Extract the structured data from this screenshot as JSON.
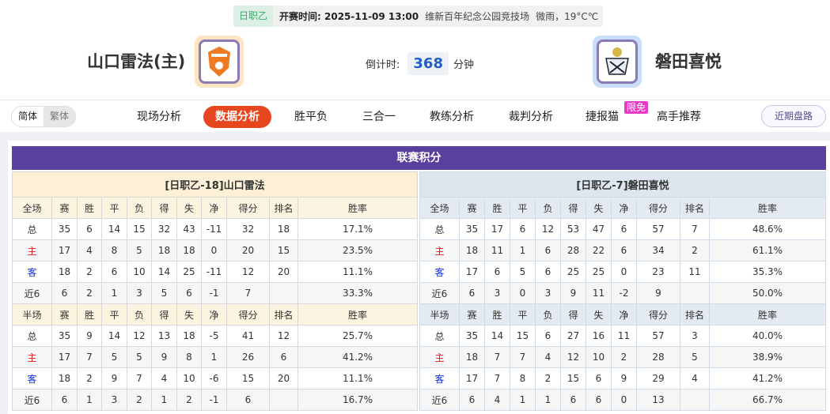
{
  "match": {
    "league": "日职乙",
    "kickoff": "开赛时间: 2025-11-09 13:00",
    "venue": "维新百年纪念公园竞技场",
    "weather": "微雨，19°C℃",
    "home_team": "山口雷法(主)",
    "away_team": "磐田喜悦",
    "countdown_label": "倒计时:",
    "countdown_value": "368",
    "countdown_unit": "分钟"
  },
  "colors": {
    "accent": "#e8461e",
    "header": "#5a3f9f",
    "home_bg": "#fdf0d7",
    "away_bg": "#dde6ef"
  },
  "nav": {
    "lang": [
      "简体",
      "繁体"
    ],
    "tabs": [
      "现场分析",
      "数据分析",
      "胜平负",
      "三合一",
      "教练分析",
      "裁判分析",
      "捷报猫",
      "高手推荐"
    ],
    "active": "数据分析",
    "badge": "限免",
    "recent": "近期盘路"
  },
  "section_title": "联赛积分",
  "columns_full": [
    "全场",
    "赛",
    "胜",
    "平",
    "负",
    "得",
    "失",
    "净",
    "得分",
    "排名",
    "胜率"
  ],
  "columns_half": [
    "半场",
    "赛",
    "胜",
    "平",
    "负",
    "得",
    "失",
    "净",
    "得分",
    "排名",
    "胜率"
  ],
  "home_table": {
    "caption": "[日职乙-18]山口雷法",
    "full": [
      [
        "总",
        "35",
        "6",
        "14",
        "15",
        "32",
        "43",
        "-11",
        "32",
        "18",
        "17.1%"
      ],
      [
        "主",
        "17",
        "4",
        "8",
        "5",
        "18",
        "18",
        "0",
        "20",
        "15",
        "23.5%"
      ],
      [
        "客",
        "18",
        "2",
        "6",
        "10",
        "14",
        "25",
        "-11",
        "12",
        "20",
        "11.1%"
      ],
      [
        "近6",
        "6",
        "2",
        "1",
        "3",
        "5",
        "6",
        "-1",
        "7",
        "",
        "33.3%"
      ]
    ],
    "half": [
      [
        "总",
        "35",
        "9",
        "14",
        "12",
        "13",
        "18",
        "-5",
        "41",
        "12",
        "25.7%"
      ],
      [
        "主",
        "17",
        "7",
        "5",
        "5",
        "9",
        "8",
        "1",
        "26",
        "6",
        "41.2%"
      ],
      [
        "客",
        "18",
        "2",
        "9",
        "7",
        "4",
        "10",
        "-6",
        "15",
        "20",
        "11.1%"
      ],
      [
        "近6",
        "6",
        "1",
        "3",
        "2",
        "1",
        "2",
        "-1",
        "6",
        "",
        "16.7%"
      ]
    ]
  },
  "away_table": {
    "caption": "[日职乙-7]磐田喜悦",
    "full": [
      [
        "总",
        "35",
        "17",
        "6",
        "12",
        "53",
        "47",
        "6",
        "57",
        "7",
        "48.6%"
      ],
      [
        "主",
        "18",
        "11",
        "1",
        "6",
        "28",
        "22",
        "6",
        "34",
        "2",
        "61.1%"
      ],
      [
        "客",
        "17",
        "6",
        "5",
        "6",
        "25",
        "25",
        "0",
        "23",
        "11",
        "35.3%"
      ],
      [
        "近6",
        "6",
        "3",
        "0",
        "3",
        "9",
        "11",
        "-2",
        "9",
        "",
        "50.0%"
      ]
    ],
    "half": [
      [
        "总",
        "35",
        "14",
        "15",
        "6",
        "27",
        "16",
        "11",
        "57",
        "3",
        "40.0%"
      ],
      [
        "主",
        "18",
        "7",
        "7",
        "4",
        "12",
        "10",
        "2",
        "28",
        "5",
        "38.9%"
      ],
      [
        "客",
        "17",
        "7",
        "8",
        "2",
        "15",
        "6",
        "9",
        "29",
        "4",
        "41.2%"
      ],
      [
        "近6",
        "6",
        "4",
        "1",
        "1",
        "6",
        "6",
        "0",
        "13",
        "",
        "66.7%"
      ]
    ]
  }
}
